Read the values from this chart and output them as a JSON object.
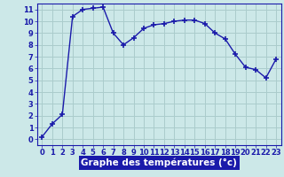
{
  "x": [
    0,
    1,
    2,
    3,
    4,
    5,
    6,
    7,
    8,
    9,
    10,
    11,
    12,
    13,
    14,
    15,
    16,
    17,
    18,
    19,
    20,
    21,
    22,
    23
  ],
  "y": [
    0.2,
    1.3,
    2.1,
    10.4,
    11.0,
    11.1,
    11.2,
    9.0,
    8.0,
    8.6,
    9.4,
    9.7,
    9.8,
    10.0,
    10.1,
    10.1,
    9.8,
    9.0,
    8.5,
    7.2,
    6.1,
    5.9,
    5.2,
    6.8
  ],
  "line_color": "#1a1aaa",
  "marker": "+",
  "marker_size": 5,
  "bg_color": "#cce8e8",
  "grid_color": "#aacccc",
  "xlabel": "Graphe des températures (°c)",
  "xlabel_bg": "#1a1aaa",
  "xlabel_color": "#ffffff",
  "ylim_min": -0.5,
  "ylim_max": 11.5,
  "xlim_min": -0.5,
  "xlim_max": 23.5,
  "yticks": [
    0,
    1,
    2,
    3,
    4,
    5,
    6,
    7,
    8,
    9,
    10,
    11
  ],
  "xticks": [
    0,
    1,
    2,
    3,
    4,
    5,
    6,
    7,
    8,
    9,
    10,
    11,
    12,
    13,
    14,
    15,
    16,
    17,
    18,
    19,
    20,
    21,
    22,
    23
  ],
  "tick_fontsize": 6,
  "xlabel_fontsize": 7.5,
  "linewidth": 1.0,
  "marker_color": "#1a1aaa"
}
